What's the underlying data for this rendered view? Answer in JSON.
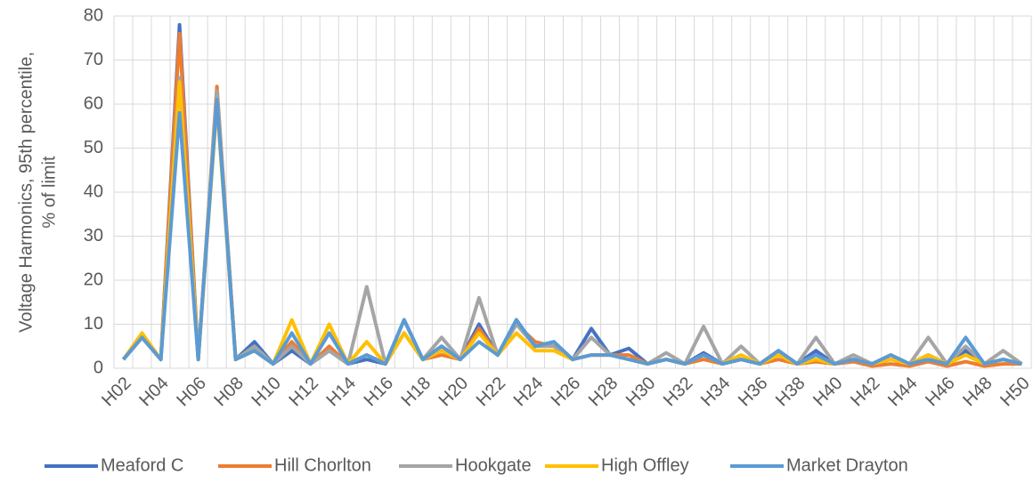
{
  "chart_data": {
    "type": "line",
    "ylabel": [
      "Voltage Harmonics, 95th percentile,",
      "% of limit"
    ],
    "categories": [
      "H02",
      null,
      "H04",
      null,
      "H06",
      null,
      "H08",
      null,
      "H10",
      null,
      "H12",
      null,
      "H14",
      null,
      "H16",
      null,
      "H18",
      null,
      "H20",
      null,
      "H22",
      null,
      "H24",
      null,
      "H26",
      null,
      "H28",
      null,
      "H30",
      null,
      "H32",
      null,
      "H34",
      null,
      "H36",
      null,
      "H38",
      null,
      "H40",
      null,
      "H42",
      null,
      "H44",
      null,
      "H46",
      null,
      "H48",
      null,
      "H50"
    ],
    "series": [
      {
        "name": "Meaford C",
        "color": "#4472c4",
        "values": [
          2,
          7,
          2,
          78,
          2,
          62,
          2,
          6,
          1,
          4,
          1,
          4,
          1,
          2,
          1,
          11,
          2,
          5,
          2,
          10,
          3,
          11,
          5,
          6,
          2,
          9,
          3,
          4.5,
          1,
          2,
          1,
          3.5,
          1,
          2,
          1,
          4,
          1,
          4,
          1,
          2,
          1,
          2,
          1,
          3,
          1,
          4,
          1,
          2,
          1
        ]
      },
      {
        "name": "Hill Chorlton",
        "color": "#ed7d31",
        "values": [
          2,
          7,
          2,
          76,
          2,
          64,
          2,
          4,
          1,
          6,
          1,
          5,
          1,
          3,
          1,
          8,
          2,
          3,
          2,
          9,
          3,
          10,
          6,
          5,
          2,
          3,
          3,
          3,
          1,
          2,
          1,
          2,
          1,
          2,
          1,
          2,
          1,
          1.5,
          1,
          1.5,
          0.5,
          1,
          0.5,
          1.5,
          0.5,
          1.5,
          0.5,
          1,
          1
        ]
      },
      {
        "name": "Hookgate",
        "color": "#a5a5a5",
        "values": [
          2,
          7,
          2,
          66,
          2,
          63,
          2,
          5,
          1,
          5,
          1,
          4,
          1,
          18.5,
          1,
          8,
          2,
          7,
          2,
          16,
          3,
          10,
          5,
          5,
          2,
          7,
          3,
          2,
          1,
          3.5,
          1,
          9.5,
          1,
          5,
          1,
          4,
          1,
          7,
          1,
          3,
          1,
          3,
          1,
          7,
          1,
          5,
          1,
          4,
          1
        ]
      },
      {
        "name": "High Offley",
        "color": "#ffc000",
        "values": [
          2,
          8,
          2,
          65,
          2,
          60,
          2,
          4,
          1,
          11,
          1,
          10,
          1,
          6,
          1,
          8,
          2,
          4,
          2,
          8,
          3,
          8,
          4,
          4,
          2,
          3,
          3,
          2,
          1,
          2,
          1,
          3,
          1,
          3,
          1,
          3,
          1,
          2,
          1,
          2,
          1,
          2,
          1,
          3,
          1,
          3,
          1,
          2,
          1
        ]
      },
      {
        "name": "Market Drayton",
        "color": "#5b9bd5",
        "values": [
          2,
          7,
          2,
          58,
          2,
          61,
          2,
          4,
          1,
          8,
          1,
          8,
          1,
          3,
          1,
          11,
          2,
          5,
          2,
          6,
          3,
          11,
          5,
          6,
          2,
          3,
          3,
          2,
          1,
          2,
          1,
          3,
          1,
          2,
          1,
          4,
          1,
          3,
          1,
          2,
          1,
          3,
          1,
          2,
          1,
          7,
          1,
          2,
          1
        ]
      }
    ],
    "ylim": [
      0,
      80
    ],
    "yticks": [
      0,
      10,
      20,
      30,
      40,
      50,
      60,
      70,
      80
    ],
    "grid": true,
    "legend": "bottom"
  }
}
